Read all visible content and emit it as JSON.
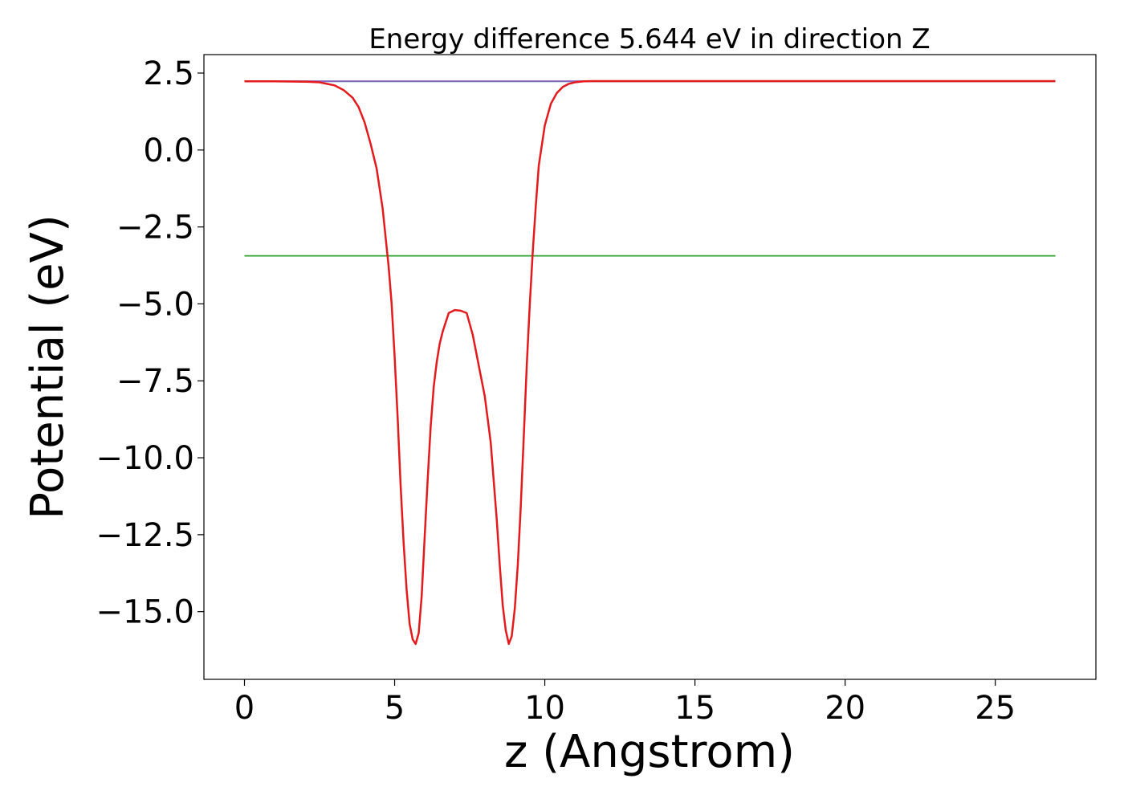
{
  "chart_data": {
    "type": "line",
    "title": "Energy difference 5.644 eV in direction Z",
    "xlabel": "z (Angstrom)",
    "ylabel": "Potential (eV)",
    "xlim": [
      -1.35,
      28.35
    ],
    "ylim": [
      -17.2,
      3.1
    ],
    "x_ticks": [
      0,
      5,
      10,
      15,
      20,
      25
    ],
    "x_tick_labels": [
      "0",
      "5",
      "10",
      "15",
      "20",
      "25"
    ],
    "y_ticks": [
      2.5,
      0.0,
      -2.5,
      -5.0,
      -7.5,
      -10.0,
      -12.5,
      -15.0
    ],
    "y_tick_labels": [
      "2.5",
      "0.0",
      "−2.5",
      "−5.0",
      "−7.5",
      "−10.0",
      "−12.5",
      "−15.0"
    ],
    "grid": false,
    "series": [
      {
        "color": "#1f77b4",
        "x": [
          0,
          27
        ],
        "y": [
          2.23,
          2.23
        ]
      },
      {
        "color": "#2ca02c",
        "x": [
          0,
          27
        ],
        "y": [
          -3.44,
          -3.44
        ]
      },
      {
        "color": "#9467bd",
        "x": [
          0,
          27
        ],
        "y": [
          2.24,
          2.24
        ]
      },
      {
        "color": "#e41a1c",
        "x": [
          0,
          1,
          2,
          2.5,
          3.0,
          3.3,
          3.6,
          3.8,
          4.0,
          4.2,
          4.4,
          4.6,
          4.8,
          4.9,
          5.0,
          5.1,
          5.2,
          5.3,
          5.4,
          5.5,
          5.6,
          5.7,
          5.8,
          5.9,
          6.0,
          6.1,
          6.2,
          6.3,
          6.4,
          6.5,
          6.6,
          6.8,
          7.0,
          7.2,
          7.4,
          7.6,
          7.8,
          8.0,
          8.2,
          8.4,
          8.5,
          8.6,
          8.7,
          8.8,
          8.9,
          9.0,
          9.1,
          9.2,
          9.3,
          9.4,
          9.5,
          9.6,
          9.7,
          9.8,
          10.0,
          10.2,
          10.4,
          10.6,
          10.8,
          11.0,
          11.3,
          11.6,
          12.0,
          13.0,
          15.0,
          20.0,
          27.0
        ],
        "y": [
          2.23,
          2.23,
          2.22,
          2.2,
          2.1,
          1.95,
          1.7,
          1.4,
          0.9,
          0.2,
          -0.6,
          -1.9,
          -3.8,
          -5.0,
          -6.7,
          -8.7,
          -10.9,
          -12.8,
          -14.3,
          -15.4,
          -15.9,
          -16.05,
          -15.7,
          -14.5,
          -12.6,
          -10.7,
          -9.0,
          -7.7,
          -6.9,
          -6.3,
          -5.9,
          -5.3,
          -5.2,
          -5.22,
          -5.3,
          -6.0,
          -7.0,
          -8.0,
          -9.5,
          -12.0,
          -13.5,
          -14.8,
          -15.6,
          -16.05,
          -15.8,
          -14.9,
          -13.5,
          -11.6,
          -9.3,
          -7.0,
          -5.0,
          -3.3,
          -1.8,
          -0.5,
          0.8,
          1.5,
          1.85,
          2.05,
          2.15,
          2.2,
          2.23,
          2.24,
          2.24,
          2.24,
          2.24,
          2.24,
          2.24
        ]
      }
    ]
  }
}
